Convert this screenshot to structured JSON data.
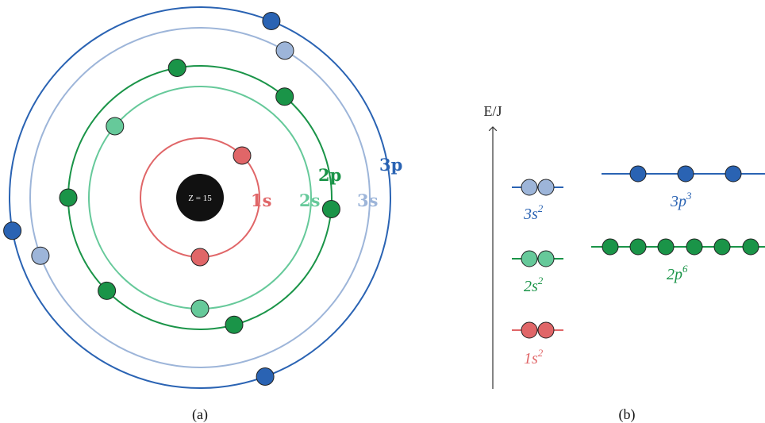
{
  "colors": {
    "s1": "#e06668",
    "s2": "#66c99a",
    "p2": "#1a9448",
    "s3": "#9db5d9",
    "p3": "#2a63b3",
    "nucleus": "#111111",
    "axis": "#333333"
  },
  "panel_a": {
    "caption": "(a)",
    "nucleus_label": "Z = 15",
    "shells": [
      {
        "key": "s1",
        "label": "1s",
        "electron_count": 2
      },
      {
        "key": "s2",
        "label": "2s",
        "electron_count": 2
      },
      {
        "key": "p2",
        "label": "2p",
        "electron_count": 6
      },
      {
        "key": "s3",
        "label": "3s",
        "electron_count": 2
      },
      {
        "key": "p3",
        "label": "3p",
        "electron_count": 3
      }
    ]
  },
  "panel_b": {
    "caption": "(b)",
    "axis_label": "E/J",
    "levels": [
      {
        "key": "s1",
        "orbital": "1s",
        "electrons": "2",
        "electron_count": 2
      },
      {
        "key": "s2",
        "orbital": "2s",
        "electrons": "2",
        "electron_count": 2
      },
      {
        "key": "s3",
        "orbital": "3s",
        "electrons": "2",
        "electron_count": 2
      },
      {
        "key": "p2",
        "orbital": "2p",
        "electrons": "6",
        "electron_count": 6
      },
      {
        "key": "p3",
        "orbital": "3p",
        "electrons": "3",
        "electron_count": 3
      }
    ]
  }
}
